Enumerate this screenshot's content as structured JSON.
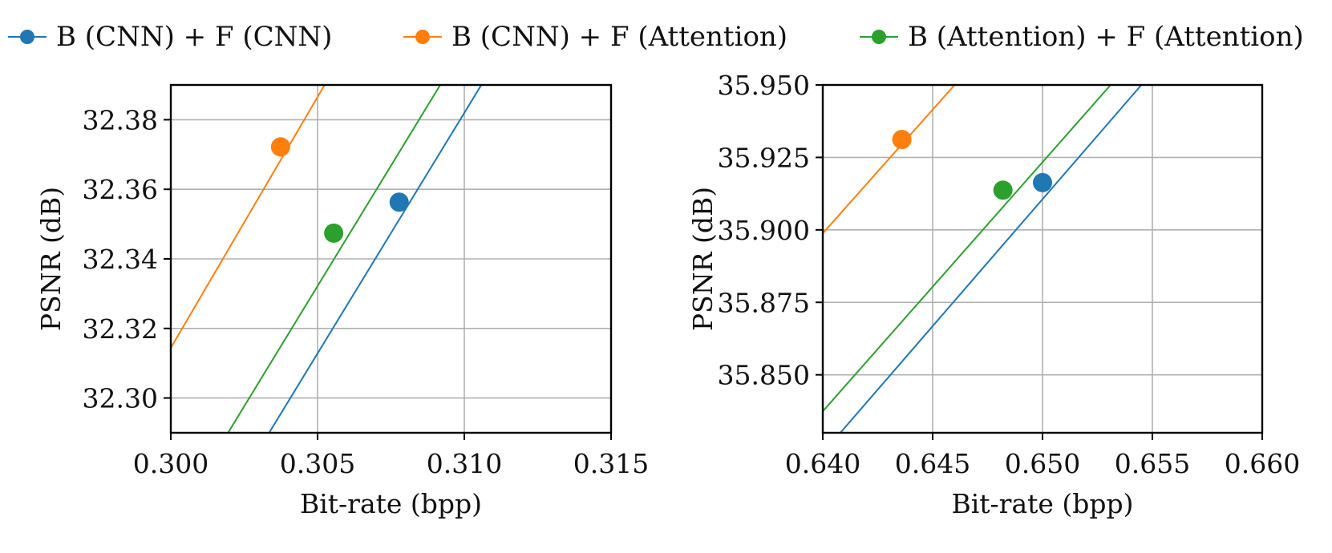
{
  "legend": [
    {
      "label": "B (CNN) + F (CNN)",
      "color": "#1f77b4"
    },
    {
      "label": "B (CNN) + F (Attention)",
      "color": "#ff7f0e"
    },
    {
      "label": "B (Attention) + F (Attention)",
      "color": "#2ca02c"
    }
  ],
  "chart_data": [
    {
      "type": "line",
      "title": "",
      "xlabel": "Bit-rate (bpp)",
      "ylabel": "PSNR (dB)",
      "xlim": [
        0.3,
        0.315
      ],
      "ylim": [
        32.29,
        32.39
      ],
      "xticks": [
        0.3,
        0.305,
        0.31,
        0.315
      ],
      "xtick_labels": [
        "0.300",
        "0.305",
        "0.310",
        "0.315"
      ],
      "yticks": [
        32.3,
        32.32,
        32.34,
        32.36,
        32.38
      ],
      "ytick_labels": [
        "32.30",
        "32.32",
        "32.34",
        "32.36",
        "32.38"
      ],
      "grid": true,
      "series": [
        {
          "name": "B (CNN) + F (CNN)",
          "color": "#1f77b4",
          "line": [
            [
              0.30335,
              32.29
            ],
            [
              0.31058,
              32.39
            ]
          ],
          "marker": [
            0.30778,
            32.3563
          ]
        },
        {
          "name": "B (CNN) + F (Attention)",
          "color": "#ff7f0e",
          "line": [
            [
              0.3,
              32.3144
            ],
            [
              0.30524,
              32.39
            ]
          ],
          "marker": [
            0.30374,
            32.3722
          ]
        },
        {
          "name": "B (Attention) + F (Attention)",
          "color": "#2ca02c",
          "line": [
            [
              0.30195,
              32.29
            ],
            [
              0.30918,
              32.39
            ]
          ],
          "marker": [
            0.30555,
            32.3474
          ]
        }
      ]
    },
    {
      "type": "line",
      "title": "",
      "xlabel": "Bit-rate (bpp)",
      "ylabel": "PSNR (dB)",
      "xlim": [
        0.64,
        0.66
      ],
      "ylim": [
        35.83,
        35.95
      ],
      "xticks": [
        0.64,
        0.645,
        0.65,
        0.655,
        0.66
      ],
      "xtick_labels": [
        "0.640",
        "0.645",
        "0.650",
        "0.655",
        "0.660"
      ],
      "yticks": [
        35.85,
        35.875,
        35.9,
        35.925,
        35.95
      ],
      "ytick_labels": [
        "35.850",
        "35.875",
        "35.900",
        "35.925",
        "35.950"
      ],
      "grid": true,
      "series": [
        {
          "name": "B (CNN) + F (CNN)",
          "color": "#1f77b4",
          "line": [
            [
              0.6408,
              35.83
            ],
            [
              0.6545,
              35.95
            ]
          ],
          "marker": [
            0.65,
            35.9163
          ]
        },
        {
          "name": "B (CNN) + F (Attention)",
          "color": "#ff7f0e",
          "line": [
            [
              0.64,
              35.8988
            ],
            [
              0.646,
              35.95
            ]
          ],
          "marker": [
            0.6436,
            35.9312
          ]
        },
        {
          "name": "B (Attention) + F (Attention)",
          "color": "#2ca02c",
          "line": [
            [
              0.64,
              35.8374
            ],
            [
              0.6531,
              35.95
            ]
          ],
          "marker": [
            0.6482,
            35.9137
          ]
        }
      ]
    }
  ]
}
